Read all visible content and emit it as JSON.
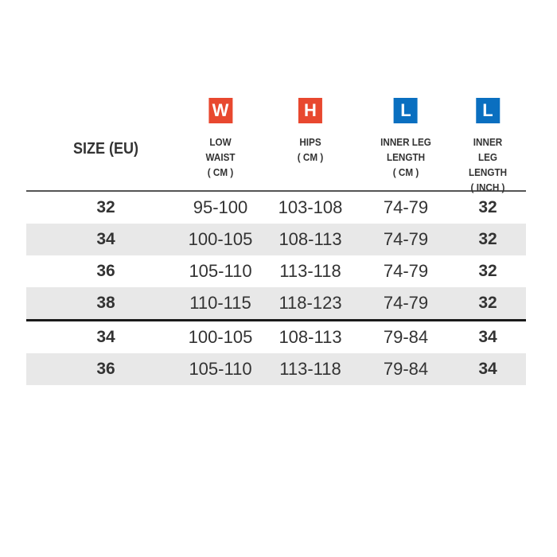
{
  "header": {
    "size_label": "SIZE (EU)",
    "columns": [
      {
        "badge": "W",
        "badge_color": "#e8482f",
        "lines": [
          "LOW",
          "WAIST",
          "( CM )"
        ]
      },
      {
        "badge": "H",
        "badge_color": "#e8482f",
        "lines": [
          "HIPS",
          "( CM )"
        ]
      },
      {
        "badge": "L",
        "badge_color": "#0a6fc0",
        "lines": [
          "INNER LEG",
          "LENGTH",
          "( CM )"
        ]
      },
      {
        "badge": "L",
        "badge_color": "#0a6fc0",
        "lines": [
          "INNER LEG",
          "LENGTH",
          "( INCH )"
        ]
      }
    ]
  },
  "group1": [
    [
      "32",
      "95-100",
      "103-108",
      "74-79",
      "32"
    ],
    [
      "34",
      "100-105",
      "108-113",
      "74-79",
      "32"
    ],
    [
      "36",
      "105-110",
      "113-118",
      "74-79",
      "32"
    ],
    [
      "38",
      "110-115",
      "118-123",
      "74-79",
      "32"
    ]
  ],
  "group2": [
    [
      "34",
      "100-105",
      "108-113",
      "79-84",
      "34"
    ],
    [
      "36",
      "105-110",
      "113-118",
      "79-84",
      "34"
    ]
  ]
}
